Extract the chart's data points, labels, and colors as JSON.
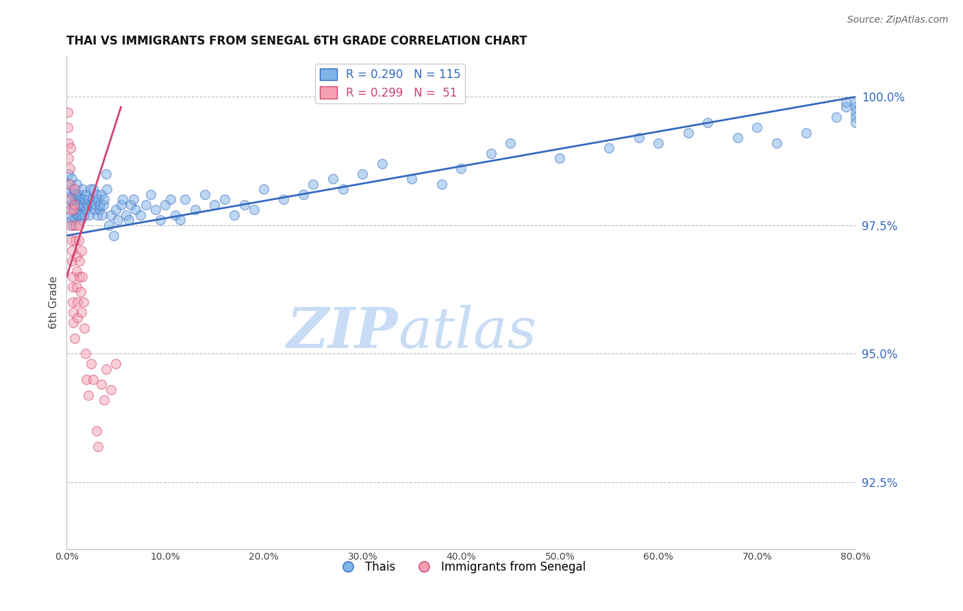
{
  "title": "THAI VS IMMIGRANTS FROM SENEGAL 6TH GRADE CORRELATION CHART",
  "source": "Source: ZipAtlas.com",
  "ylabel": "6th Grade",
  "yticks": [
    92.5,
    95.0,
    97.5,
    100.0
  ],
  "ytick_labels": [
    "92.5%",
    "95.0%",
    "97.5%",
    "100.0%"
  ],
  "xmin": 0.0,
  "xmax": 0.8,
  "ymin": 91.2,
  "ymax": 100.8,
  "blue_R": 0.29,
  "blue_N": 115,
  "pink_R": 0.299,
  "pink_N": 51,
  "blue_color": "#7EB3E8",
  "pink_color": "#F4A0B0",
  "trend_blue": "#3569C0",
  "trend_pink": "#D04070",
  "watermark_zip_color": "#C8DCF5",
  "watermark_atlas_color": "#C8DCF5",
  "blue_trend_x0": 0.0,
  "blue_trend_y0": 97.3,
  "blue_trend_x1": 0.8,
  "blue_trend_y1": 100.0,
  "pink_trend_x0": 0.0,
  "pink_trend_y0": 96.5,
  "pink_trend_x1": 0.055,
  "pink_trend_y1": 99.8,
  "blue_x": [
    0.001,
    0.002,
    0.003,
    0.003,
    0.004,
    0.004,
    0.005,
    0.005,
    0.006,
    0.006,
    0.007,
    0.007,
    0.008,
    0.008,
    0.009,
    0.009,
    0.01,
    0.01,
    0.01,
    0.011,
    0.011,
    0.012,
    0.012,
    0.013,
    0.013,
    0.014,
    0.014,
    0.015,
    0.015,
    0.016,
    0.017,
    0.018,
    0.018,
    0.019,
    0.02,
    0.021,
    0.022,
    0.023,
    0.024,
    0.025,
    0.026,
    0.027,
    0.028,
    0.029,
    0.03,
    0.031,
    0.032,
    0.033,
    0.034,
    0.035,
    0.036,
    0.037,
    0.038,
    0.04,
    0.041,
    0.043,
    0.045,
    0.048,
    0.05,
    0.052,
    0.055,
    0.057,
    0.06,
    0.063,
    0.065,
    0.068,
    0.07,
    0.075,
    0.08,
    0.085,
    0.09,
    0.095,
    0.1,
    0.105,
    0.11,
    0.115,
    0.12,
    0.13,
    0.14,
    0.15,
    0.16,
    0.17,
    0.18,
    0.19,
    0.2,
    0.22,
    0.24,
    0.25,
    0.27,
    0.28,
    0.3,
    0.32,
    0.35,
    0.38,
    0.4,
    0.43,
    0.45,
    0.5,
    0.55,
    0.58,
    0.6,
    0.63,
    0.65,
    0.68,
    0.7,
    0.72,
    0.75,
    0.78,
    0.79,
    0.79,
    0.8,
    0.8,
    0.8,
    0.8,
    0.8
  ],
  "blue_y": [
    98.2,
    98.5,
    97.9,
    98.3,
    98.0,
    97.7,
    98.4,
    97.6,
    98.1,
    97.5,
    98.2,
    97.9,
    98.0,
    97.6,
    98.1,
    97.8,
    98.3,
    98.0,
    97.7,
    98.1,
    97.9,
    98.0,
    97.7,
    98.1,
    97.8,
    97.9,
    97.6,
    98.0,
    97.7,
    98.2,
    97.9,
    98.0,
    97.7,
    98.1,
    97.8,
    97.9,
    98.0,
    97.7,
    98.2,
    97.9,
    98.0,
    98.2,
    97.8,
    97.9,
    98.1,
    97.7,
    98.0,
    97.8,
    97.9,
    98.1,
    97.7,
    97.9,
    98.0,
    98.5,
    98.2,
    97.5,
    97.7,
    97.3,
    97.8,
    97.6,
    97.9,
    98.0,
    97.7,
    97.6,
    97.9,
    98.0,
    97.8,
    97.7,
    97.9,
    98.1,
    97.8,
    97.6,
    97.9,
    98.0,
    97.7,
    97.6,
    98.0,
    97.8,
    98.1,
    97.9,
    98.0,
    97.7,
    97.9,
    97.8,
    98.2,
    98.0,
    98.1,
    98.3,
    98.4,
    98.2,
    98.5,
    98.7,
    98.4,
    98.3,
    98.6,
    98.9,
    99.1,
    98.8,
    99.0,
    99.2,
    99.1,
    99.3,
    99.5,
    99.2,
    99.4,
    99.1,
    99.3,
    99.6,
    99.8,
    99.9,
    99.8,
    99.9,
    99.7,
    99.6,
    99.5
  ],
  "pink_x": [
    0.001,
    0.001,
    0.002,
    0.002,
    0.003,
    0.003,
    0.003,
    0.004,
    0.004,
    0.004,
    0.005,
    0.005,
    0.005,
    0.006,
    0.006,
    0.006,
    0.007,
    0.007,
    0.007,
    0.008,
    0.008,
    0.008,
    0.009,
    0.009,
    0.01,
    0.01,
    0.01,
    0.011,
    0.011,
    0.012,
    0.012,
    0.013,
    0.013,
    0.014,
    0.015,
    0.015,
    0.016,
    0.017,
    0.018,
    0.019,
    0.02,
    0.022,
    0.025,
    0.027,
    0.03,
    0.032,
    0.035,
    0.038,
    0.04,
    0.045,
    0.05
  ],
  "pink_y": [
    99.7,
    99.4,
    99.1,
    98.8,
    98.6,
    98.3,
    98.0,
    97.8,
    97.5,
    99.0,
    97.2,
    97.0,
    96.8,
    96.5,
    96.3,
    96.0,
    95.8,
    95.6,
    97.8,
    95.3,
    98.2,
    97.9,
    97.5,
    97.2,
    96.9,
    96.6,
    96.3,
    96.0,
    95.7,
    97.5,
    97.2,
    96.8,
    96.5,
    96.2,
    95.8,
    97.0,
    96.5,
    96.0,
    95.5,
    95.0,
    94.5,
    94.2,
    94.8,
    94.5,
    93.5,
    93.2,
    94.4,
    94.1,
    94.7,
    94.3,
    94.8
  ]
}
